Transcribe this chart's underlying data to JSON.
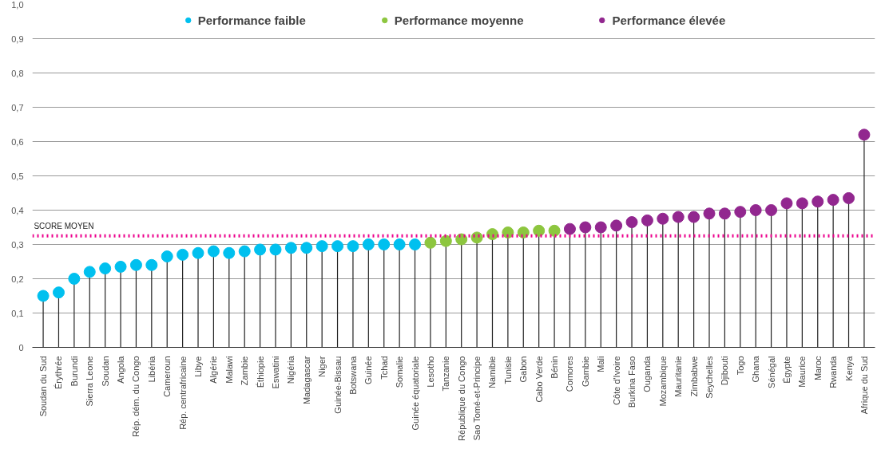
{
  "chart_data": {
    "type": "lollipop",
    "categories": [
      "Soudan du Sud",
      "Érythrée",
      "Burundi",
      "Sierra Leone",
      "Soudan",
      "Angola",
      "Rép. dém. du Congo",
      "Libéria",
      "Cameroun",
      "Rép. centrafricaine",
      "Libye",
      "Algérie",
      "Malawi",
      "Zambie",
      "Éthiopie",
      "Eswatini",
      "Nigéria",
      "Madagascar",
      "Niger",
      "Guinée-Bissau",
      "Botswana",
      "Guinée",
      "Tchad",
      "Somalie",
      "Guinée équatoriale",
      "Lesotho",
      "Tanzanie",
      "République du Congo",
      "Sao Tomé-et-Principe",
      "Namibie",
      "Tunisie",
      "Gabon",
      "Cabo Verde",
      "Bénin",
      "Comores",
      "Gambie",
      "Mali",
      "Côte d'Ivoire",
      "Burkina Faso",
      "Ouganda",
      "Mozambique",
      "Mauritanie",
      "Zimbabwe",
      "Seychelles",
      "Djibouti",
      "Togo",
      "Ghana",
      "Sénégal",
      "Égypte",
      "Maurice",
      "Maroc",
      "Rwanda",
      "Kenya",
      "Afrique du Sud"
    ],
    "series": [
      {
        "name": "Performance faible",
        "color": "#00c0ef",
        "values": [
          0.15,
          0.16,
          0.2,
          0.22,
          0.23,
          0.235,
          0.24,
          0.24,
          0.265,
          0.27,
          0.275,
          0.28,
          0.275,
          0.28,
          0.285,
          0.285,
          0.29,
          0.29,
          0.295,
          0.295,
          0.295,
          0.3,
          0.3,
          0.3,
          0.3,
          null,
          null,
          null,
          null,
          null,
          null,
          null,
          null,
          null,
          null,
          null,
          null,
          null,
          null,
          null,
          null,
          null,
          null,
          null,
          null,
          null,
          null,
          null,
          null,
          null,
          null,
          null,
          null,
          null
        ]
      },
      {
        "name": "Performance moyenne",
        "color": "#8dc63f",
        "values": [
          null,
          null,
          null,
          null,
          null,
          null,
          null,
          null,
          null,
          null,
          null,
          null,
          null,
          null,
          null,
          null,
          null,
          null,
          null,
          null,
          null,
          null,
          null,
          null,
          null,
          0.305,
          0.31,
          0.315,
          0.32,
          0.33,
          0.335,
          0.335,
          0.34,
          0.34,
          null,
          null,
          null,
          null,
          null,
          null,
          null,
          null,
          null,
          null,
          null,
          null,
          null,
          null,
          null,
          null,
          null,
          null,
          null,
          null
        ]
      },
      {
        "name": "Performance élevée",
        "color": "#92278f",
        "values": [
          null,
          null,
          null,
          null,
          null,
          null,
          null,
          null,
          null,
          null,
          null,
          null,
          null,
          null,
          null,
          null,
          null,
          null,
          null,
          null,
          null,
          null,
          null,
          null,
          null,
          null,
          null,
          null,
          null,
          null,
          null,
          null,
          null,
          null,
          0.345,
          0.35,
          0.35,
          0.355,
          0.365,
          0.37,
          0.375,
          0.38,
          0.38,
          0.39,
          0.39,
          0.395,
          0.4,
          0.4,
          0.42,
          0.42,
          0.425,
          0.43,
          0.435,
          0.62
        ]
      }
    ],
    "ylim": [
      0,
      1
    ],
    "yticks": [
      0,
      {
        "value": 0.1,
        "label": "0,1"
      },
      {
        "value": 0.2,
        "label": "0,2"
      },
      {
        "value": 0.3,
        "label": "0,3"
      },
      {
        "value": 0.4,
        "label": "0,4"
      },
      {
        "value": 0.5,
        "label": "0,5"
      },
      {
        "value": 0.6,
        "label": "0,6"
      },
      {
        "value": 0.7,
        "label": "0,7"
      },
      {
        "value": 0.8,
        "label": "0,8"
      },
      {
        "value": 0.9,
        "label": "0,9"
      },
      {
        "value": 1,
        "label": "1,0"
      }
    ],
    "ref_lines": [
      {
        "axis": "y",
        "value": 0.325,
        "label": "SCORE MOYEN",
        "color": "#ec008c",
        "line_style": "dotted"
      }
    ],
    "grid": "y",
    "legend": "top",
    "marker": "circle"
  }
}
